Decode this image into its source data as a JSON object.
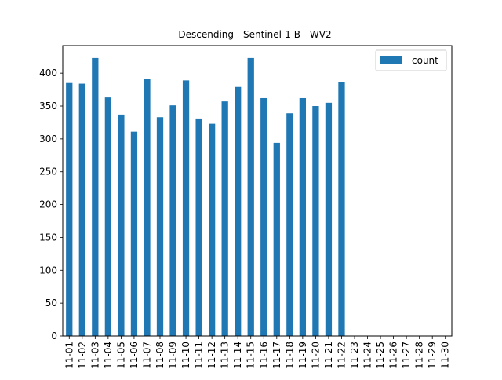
{
  "chart_data": {
    "type": "bar",
    "title": "Descending - Sentinel-1 B - WV2",
    "xlabel": "",
    "ylabel": "",
    "categories": [
      "11-01",
      "11-02",
      "11-03",
      "11-04",
      "11-05",
      "11-06",
      "11-07",
      "11-08",
      "11-09",
      "11-10",
      "11-11",
      "11-12",
      "11-13",
      "11-14",
      "11-15",
      "11-16",
      "11-17",
      "11-18",
      "11-19",
      "11-20",
      "11-21",
      "11-22",
      "11-23",
      "11-24",
      "11-25",
      "11-26",
      "11-27",
      "11-28",
      "11-29",
      "11-30"
    ],
    "series": [
      {
        "name": "count",
        "color": "#1f77b4",
        "values": [
          385,
          384,
          423,
          363,
          337,
          311,
          391,
          333,
          351,
          389,
          331,
          323,
          357,
          379,
          423,
          362,
          294,
          339,
          362,
          350,
          355,
          387,
          0,
          0,
          0,
          0,
          0,
          0,
          0,
          0
        ]
      }
    ],
    "ylim": [
      0,
      442
    ],
    "yticks": [
      0,
      50,
      100,
      150,
      200,
      250,
      300,
      350,
      400
    ],
    "grid": false,
    "legend": "top-right"
  }
}
